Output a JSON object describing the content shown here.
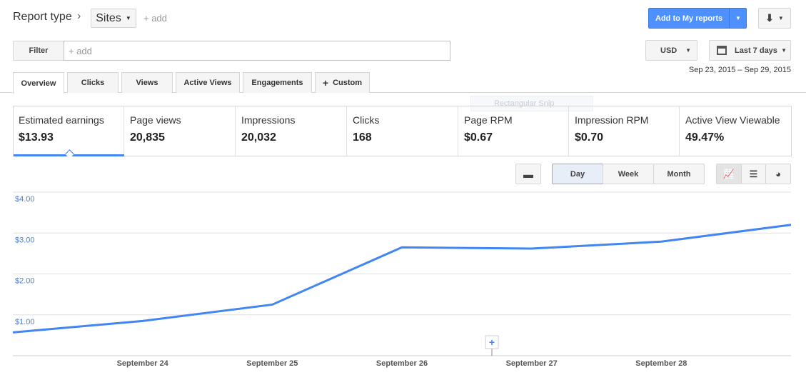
{
  "header": {
    "report_type": "Report type",
    "dimension": "Sites",
    "add": "+ add",
    "add_to_reports": "Add to My reports"
  },
  "filter": {
    "label": "Filter",
    "placeholder": "+ add"
  },
  "currency": "USD",
  "date_range": {
    "label": "Last 7 days",
    "dates": "Sep 23, 2015 – Sep 29, 2015"
  },
  "tabs": [
    "Overview",
    "Clicks",
    "Views",
    "Active Views",
    "Engagements",
    "Custom"
  ],
  "overlay": "Rectangular Snip",
  "metrics": [
    {
      "name": "Estimated earnings",
      "value": "$13.93"
    },
    {
      "name": "Page views",
      "value": "20,835"
    },
    {
      "name": "Impressions",
      "value": "20,032"
    },
    {
      "name": "Clicks",
      "value": "168"
    },
    {
      "name": "Page RPM",
      "value": "$0.67"
    },
    {
      "name": "Impression RPM",
      "value": "$0.70"
    },
    {
      "name": "Active View Viewable",
      "value": "49.47%"
    }
  ],
  "granularity": [
    "Day",
    "Week",
    "Month"
  ],
  "chart_data": {
    "type": "line",
    "categories": [
      null,
      "September 24",
      "September 25",
      "September 26",
      "September 27",
      "September 28",
      null
    ],
    "values": [
      0.57,
      0.85,
      1.25,
      2.65,
      2.62,
      2.79,
      3.2
    ],
    "color": "#4285f4",
    "ylim": [
      0,
      4
    ],
    "yticks": [
      {
        "value": 1,
        "label": "$1.00"
      },
      {
        "value": 2,
        "label": "$2.00"
      },
      {
        "value": 3,
        "label": "$3.00"
      },
      {
        "value": 4,
        "label": "$4.00"
      }
    ],
    "grid": true
  }
}
